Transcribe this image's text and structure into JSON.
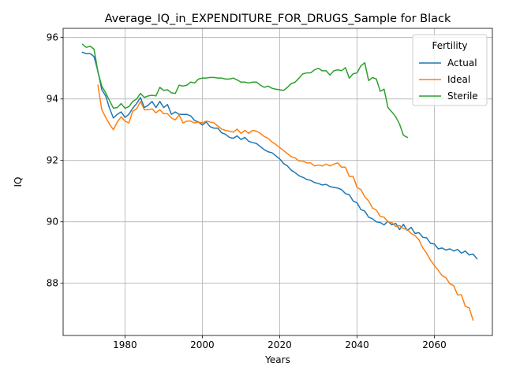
{
  "chart_data": {
    "type": "line",
    "title": "Average_IQ_in_EXPENDITURE_FOR_DRUGS_Sample for Black",
    "xlabel": "Years",
    "ylabel": "IQ",
    "xlim": [
      1964,
      2075
    ],
    "ylim": [
      86.3,
      96.3
    ],
    "xticks": [
      1980,
      2000,
      2020,
      2040,
      2060
    ],
    "yticks": [
      88,
      90,
      92,
      94,
      96
    ],
    "grid": true,
    "legend": {
      "title": "Fertility",
      "position": "top-right"
    },
    "series": [
      {
        "name": "Actual",
        "color": "#1f77b4",
        "points": [
          [
            1969,
            95.52
          ],
          [
            1970,
            95.48
          ],
          [
            1971,
            95.48
          ],
          [
            1972,
            95.38
          ],
          [
            1973,
            94.9
          ],
          [
            1974,
            94.3
          ],
          [
            1975,
            94.1
          ],
          [
            1976,
            93.7
          ],
          [
            1977,
            93.38
          ],
          [
            1978,
            93.5
          ],
          [
            1979,
            93.58
          ],
          [
            1980,
            93.4
          ],
          [
            1981,
            93.5
          ],
          [
            1982,
            93.7
          ],
          [
            1983,
            93.85
          ],
          [
            1984,
            94.05
          ],
          [
            1985,
            93.72
          ],
          [
            1986,
            93.8
          ],
          [
            1987,
            93.92
          ],
          [
            1988,
            93.72
          ],
          [
            1989,
            93.92
          ],
          [
            1990,
            93.72
          ],
          [
            1991,
            93.82
          ],
          [
            1992,
            93.5
          ],
          [
            1993,
            93.58
          ],
          [
            1994,
            93.5
          ],
          [
            1995,
            93.5
          ],
          [
            1996,
            93.5
          ],
          [
            1997,
            93.45
          ],
          [
            1998,
            93.3
          ],
          [
            1999,
            93.25
          ],
          [
            2000,
            93.15
          ],
          [
            2001,
            93.25
          ],
          [
            2002,
            93.1
          ],
          [
            2003,
            93.05
          ],
          [
            2004,
            93.05
          ],
          [
            2005,
            92.9
          ],
          [
            2006,
            92.85
          ],
          [
            2007,
            92.75
          ],
          [
            2008,
            92.72
          ],
          [
            2009,
            92.8
          ],
          [
            2010,
            92.68
          ],
          [
            2011,
            92.75
          ],
          [
            2012,
            92.62
          ],
          [
            2013,
            92.58
          ],
          [
            2014,
            92.55
          ],
          [
            2015,
            92.45
          ],
          [
            2016,
            92.35
          ],
          [
            2017,
            92.28
          ],
          [
            2018,
            92.25
          ],
          [
            2019,
            92.15
          ],
          [
            2020,
            92.05
          ],
          [
            2021,
            91.9
          ],
          [
            2022,
            91.82
          ],
          [
            2023,
            91.68
          ],
          [
            2024,
            91.6
          ],
          [
            2025,
            91.5
          ],
          [
            2026,
            91.45
          ],
          [
            2027,
            91.38
          ],
          [
            2028,
            91.35
          ],
          [
            2029,
            91.28
          ],
          [
            2030,
            91.25
          ],
          [
            2031,
            91.2
          ],
          [
            2032,
            91.22
          ],
          [
            2033,
            91.15
          ],
          [
            2034,
            91.12
          ],
          [
            2035,
            91.1
          ],
          [
            2036,
            91.05
          ],
          [
            2037,
            90.92
          ],
          [
            2038,
            90.88
          ],
          [
            2039,
            90.68
          ],
          [
            2040,
            90.62
          ],
          [
            2041,
            90.4
          ],
          [
            2042,
            90.35
          ],
          [
            2043,
            90.15
          ],
          [
            2044,
            90.1
          ],
          [
            2045,
            90.0
          ],
          [
            2046,
            89.98
          ],
          [
            2047,
            89.9
          ],
          [
            2048,
            90.02
          ],
          [
            2049,
            89.9
          ],
          [
            2050,
            89.95
          ],
          [
            2051,
            89.75
          ],
          [
            2052,
            89.92
          ],
          [
            2053,
            89.72
          ],
          [
            2054,
            89.82
          ],
          [
            2055,
            89.62
          ],
          [
            2056,
            89.65
          ],
          [
            2057,
            89.5
          ],
          [
            2058,
            89.48
          ],
          [
            2059,
            89.3
          ],
          [
            2060,
            89.28
          ],
          [
            2061,
            89.12
          ],
          [
            2062,
            89.15
          ],
          [
            2063,
            89.08
          ],
          [
            2064,
            89.12
          ],
          [
            2065,
            89.05
          ],
          [
            2066,
            89.1
          ],
          [
            2067,
            88.98
          ],
          [
            2068,
            89.05
          ],
          [
            2069,
            88.92
          ],
          [
            2070,
            88.95
          ],
          [
            2071,
            88.8
          ]
        ]
      },
      {
        "name": "Ideal",
        "color": "#ff7f0e",
        "points": [
          [
            1973,
            94.45
          ],
          [
            1974,
            93.65
          ],
          [
            1975,
            93.4
          ],
          [
            1976,
            93.18
          ],
          [
            1977,
            93.0
          ],
          [
            1978,
            93.25
          ],
          [
            1979,
            93.42
          ],
          [
            1980,
            93.28
          ],
          [
            1981,
            93.22
          ],
          [
            1982,
            93.6
          ],
          [
            1983,
            93.68
          ],
          [
            1984,
            93.92
          ],
          [
            1985,
            93.65
          ],
          [
            1986,
            93.65
          ],
          [
            1987,
            93.68
          ],
          [
            1988,
            93.55
          ],
          [
            1989,
            93.65
          ],
          [
            1990,
            93.52
          ],
          [
            1991,
            93.52
          ],
          [
            1992,
            93.38
          ],
          [
            1993,
            93.32
          ],
          [
            1994,
            93.48
          ],
          [
            1995,
            93.22
          ],
          [
            1996,
            93.28
          ],
          [
            1997,
            93.28
          ],
          [
            1998,
            93.22
          ],
          [
            1999,
            93.25
          ],
          [
            2000,
            93.22
          ],
          [
            2001,
            93.28
          ],
          [
            2002,
            93.25
          ],
          [
            2003,
            93.22
          ],
          [
            2004,
            93.12
          ],
          [
            2005,
            93.02
          ],
          [
            2006,
            92.98
          ],
          [
            2007,
            92.95
          ],
          [
            2008,
            92.92
          ],
          [
            2009,
            93.02
          ],
          [
            2010,
            92.88
          ],
          [
            2011,
            92.98
          ],
          [
            2012,
            92.88
          ],
          [
            2013,
            92.98
          ],
          [
            2014,
            92.95
          ],
          [
            2015,
            92.88
          ],
          [
            2016,
            92.78
          ],
          [
            2017,
            92.72
          ],
          [
            2018,
            92.6
          ],
          [
            2019,
            92.52
          ],
          [
            2020,
            92.42
          ],
          [
            2021,
            92.32
          ],
          [
            2022,
            92.22
          ],
          [
            2023,
            92.12
          ],
          [
            2024,
            92.08
          ],
          [
            2025,
            91.98
          ],
          [
            2026,
            91.98
          ],
          [
            2027,
            91.92
          ],
          [
            2028,
            91.92
          ],
          [
            2029,
            91.82
          ],
          [
            2030,
            91.85
          ],
          [
            2031,
            91.82
          ],
          [
            2032,
            91.88
          ],
          [
            2033,
            91.82
          ],
          [
            2034,
            91.88
          ],
          [
            2035,
            91.92
          ],
          [
            2036,
            91.78
          ],
          [
            2037,
            91.78
          ],
          [
            2038,
            91.48
          ],
          [
            2039,
            91.48
          ],
          [
            2040,
            91.12
          ],
          [
            2041,
            91.05
          ],
          [
            2042,
            90.82
          ],
          [
            2043,
            90.68
          ],
          [
            2044,
            90.45
          ],
          [
            2045,
            90.38
          ],
          [
            2046,
            90.18
          ],
          [
            2047,
            90.15
          ],
          [
            2048,
            90.0
          ],
          [
            2049,
            89.98
          ],
          [
            2050,
            89.85
          ],
          [
            2051,
            89.88
          ],
          [
            2052,
            89.78
          ],
          [
            2053,
            89.75
          ],
          [
            2054,
            89.62
          ],
          [
            2055,
            89.55
          ],
          [
            2056,
            89.42
          ],
          [
            2057,
            89.15
          ],
          [
            2058,
            88.98
          ],
          [
            2059,
            88.75
          ],
          [
            2060,
            88.58
          ],
          [
            2061,
            88.42
          ],
          [
            2062,
            88.25
          ],
          [
            2063,
            88.18
          ],
          [
            2064,
            87.98
          ],
          [
            2065,
            87.92
          ],
          [
            2066,
            87.62
          ],
          [
            2067,
            87.62
          ],
          [
            2068,
            87.25
          ],
          [
            2069,
            87.2
          ],
          [
            2070,
            86.8
          ]
        ]
      },
      {
        "name": "Sterile",
        "color": "#2ca02c",
        "points": [
          [
            1969,
            95.78
          ],
          [
            1970,
            95.68
          ],
          [
            1971,
            95.72
          ],
          [
            1972,
            95.62
          ],
          [
            1973,
            94.88
          ],
          [
            1974,
            94.42
          ],
          [
            1975,
            94.2
          ],
          [
            1976,
            93.95
          ],
          [
            1977,
            93.7
          ],
          [
            1978,
            93.72
          ],
          [
            1979,
            93.85
          ],
          [
            1980,
            93.7
          ],
          [
            1981,
            93.75
          ],
          [
            1982,
            93.92
          ],
          [
            1983,
            94.0
          ],
          [
            1984,
            94.18
          ],
          [
            1985,
            94.05
          ],
          [
            1986,
            94.1
          ],
          [
            1987,
            94.12
          ],
          [
            1988,
            94.1
          ],
          [
            1989,
            94.38
          ],
          [
            1990,
            94.28
          ],
          [
            1991,
            94.3
          ],
          [
            1992,
            94.2
          ],
          [
            1993,
            94.18
          ],
          [
            1994,
            94.45
          ],
          [
            1995,
            94.42
          ],
          [
            1996,
            94.45
          ],
          [
            1997,
            94.55
          ],
          [
            1998,
            94.52
          ],
          [
            1999,
            94.65
          ],
          [
            2000,
            94.68
          ],
          [
            2001,
            94.68
          ],
          [
            2002,
            94.7
          ],
          [
            2003,
            94.7
          ],
          [
            2004,
            94.68
          ],
          [
            2005,
            94.68
          ],
          [
            2006,
            94.65
          ],
          [
            2007,
            94.65
          ],
          [
            2008,
            94.68
          ],
          [
            2009,
            94.62
          ],
          [
            2010,
            94.55
          ],
          [
            2011,
            94.55
          ],
          [
            2012,
            94.52
          ],
          [
            2013,
            94.55
          ],
          [
            2014,
            94.55
          ],
          [
            2015,
            94.45
          ],
          [
            2016,
            94.38
          ],
          [
            2017,
            94.42
          ],
          [
            2018,
            94.35
          ],
          [
            2019,
            94.32
          ],
          [
            2020,
            94.3
          ],
          [
            2021,
            94.28
          ],
          [
            2022,
            94.38
          ],
          [
            2023,
            94.5
          ],
          [
            2024,
            94.55
          ],
          [
            2025,
            94.68
          ],
          [
            2026,
            94.82
          ],
          [
            2027,
            94.85
          ],
          [
            2028,
            94.85
          ],
          [
            2029,
            94.95
          ],
          [
            2030,
            95.0
          ],
          [
            2031,
            94.92
          ],
          [
            2032,
            94.92
          ],
          [
            2033,
            94.78
          ],
          [
            2034,
            94.92
          ],
          [
            2035,
            94.95
          ],
          [
            2036,
            94.92
          ],
          [
            2037,
            95.02
          ],
          [
            2038,
            94.68
          ],
          [
            2039,
            94.82
          ],
          [
            2040,
            94.85
          ],
          [
            2041,
            95.08
          ],
          [
            2042,
            95.18
          ],
          [
            2043,
            94.6
          ],
          [
            2044,
            94.7
          ],
          [
            2045,
            94.65
          ],
          [
            2046,
            94.25
          ],
          [
            2047,
            94.32
          ],
          [
            2048,
            93.72
          ],
          [
            2049,
            93.58
          ],
          [
            2050,
            93.42
          ],
          [
            2051,
            93.18
          ],
          [
            2052,
            92.82
          ],
          [
            2053,
            92.75
          ]
        ]
      }
    ]
  }
}
